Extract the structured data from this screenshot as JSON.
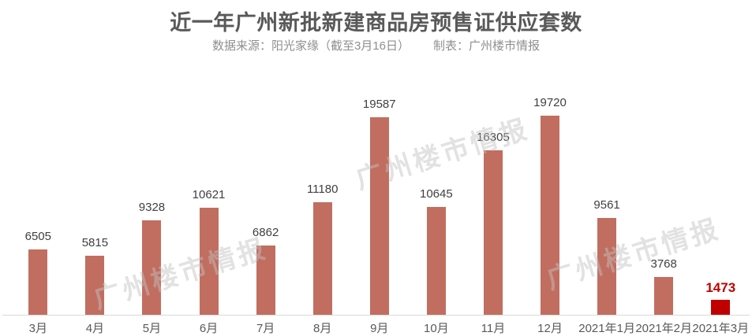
{
  "header": {
    "title": "近一年广州新批新建商品房预售证供应套数",
    "subtitle_source": "数据来源：阳光家缘（截至3月16日）",
    "subtitle_maker": "制表：广州楼市情报"
  },
  "watermark": {
    "text": "广州楼市情报"
  },
  "colors": {
    "bar": "#c16e60",
    "highlight_bar": "#c00000",
    "value_label": "#404040",
    "highlight_value_label": "#c00000",
    "title_text": "#595959",
    "subtitle_text": "#8f8f8f",
    "axis_line": "#d9d9d9"
  },
  "chart_data": {
    "type": "bar",
    "title": "近一年广州新批新建商品房预售证供应套数",
    "categories": [
      "3月",
      "4月",
      "5月",
      "6月",
      "7月",
      "8月",
      "9月",
      "10月",
      "11月",
      "12月",
      "2021年1月",
      "2021年2月",
      "2021年3月"
    ],
    "values": [
      6505,
      5815,
      9328,
      10621,
      6862,
      11180,
      19587,
      10645,
      16305,
      19720,
      9561,
      3768,
      1473
    ],
    "highlight_index": 12,
    "xlabel": "",
    "ylabel": "",
    "ylim": [
      0,
      19720
    ],
    "grid": false,
    "legend": false,
    "data_labels": true,
    "y_axis_visible": false,
    "x_axis_visible": true
  }
}
